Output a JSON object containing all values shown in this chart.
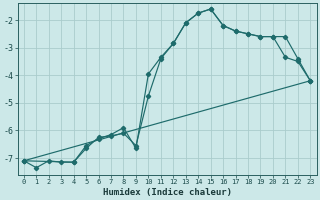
{
  "bg_color": "#cce8e8",
  "grid_color": "#aacccc",
  "line_color": "#1e6b6b",
  "xlabel": "Humidex (Indice chaleur)",
  "xlim": [
    -0.5,
    23.5
  ],
  "ylim": [
    -7.6,
    -1.4
  ],
  "yticks": [
    -7,
    -6,
    -5,
    -4,
    -3,
    -2
  ],
  "xticks": [
    0,
    1,
    2,
    3,
    4,
    5,
    6,
    7,
    8,
    9,
    10,
    11,
    12,
    13,
    14,
    15,
    16,
    17,
    18,
    19,
    20,
    21,
    22,
    23
  ],
  "line1_x": [
    0,
    1,
    2,
    3,
    4,
    5,
    6,
    7,
    8,
    9,
    10,
    11,
    12,
    13,
    14,
    15,
    16,
    17,
    18,
    19,
    20,
    21,
    22,
    23
  ],
  "line1_y": [
    -7.1,
    -7.35,
    -7.1,
    -7.15,
    -7.15,
    -6.55,
    -6.3,
    -6.15,
    -5.9,
    -6.65,
    -3.95,
    -3.35,
    -2.85,
    -2.1,
    -1.75,
    -1.6,
    -2.2,
    -2.4,
    -2.5,
    -2.6,
    -2.6,
    -2.6,
    -3.4,
    -4.2
  ],
  "line2_x": [
    0,
    4,
    5,
    6,
    7,
    8,
    9,
    10,
    11,
    12,
    13,
    14,
    15,
    16,
    17,
    18,
    19,
    20,
    21,
    22,
    23
  ],
  "line2_y": [
    -7.1,
    -7.15,
    -6.65,
    -6.25,
    -6.2,
    -6.1,
    -6.55,
    -4.75,
    -3.4,
    -2.85,
    -2.1,
    -1.75,
    -1.6,
    -2.2,
    -2.4,
    -2.5,
    -2.6,
    -2.6,
    -3.35,
    -3.5,
    -4.2
  ],
  "line3_x": [
    0,
    23
  ],
  "line3_y": [
    -7.1,
    -4.2
  ]
}
